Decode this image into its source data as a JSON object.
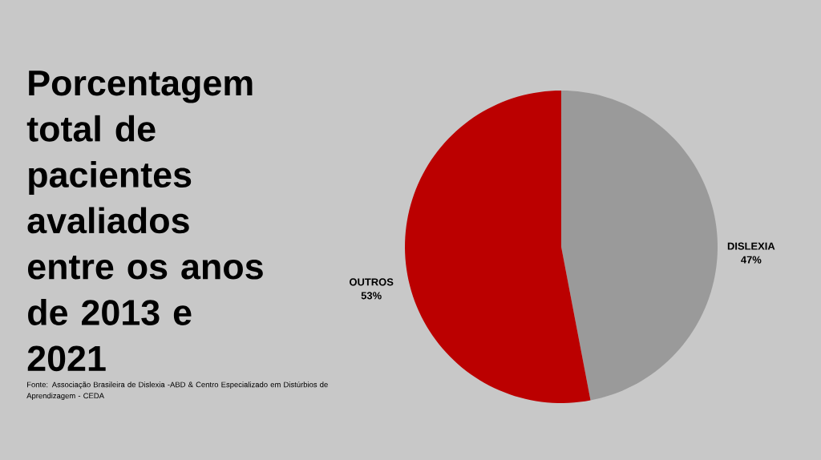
{
  "chart_data": {
    "type": "pie",
    "title": "Porcentagem total de pacientes avaliados entre os anos de 2013 e 2021",
    "categories": [
      "DISLEXIA",
      "OUTROS"
    ],
    "values": [
      47,
      53
    ],
    "colors": [
      "#9a9a9a",
      "#bb0000"
    ],
    "value_labels": [
      "47%",
      "53%"
    ],
    "annotations": [
      "Fonte: Associação Brasileira de Dislexia -ABD & Centro Especializado em Distúrbios de Aprendizagem - CEDA"
    ]
  }
}
